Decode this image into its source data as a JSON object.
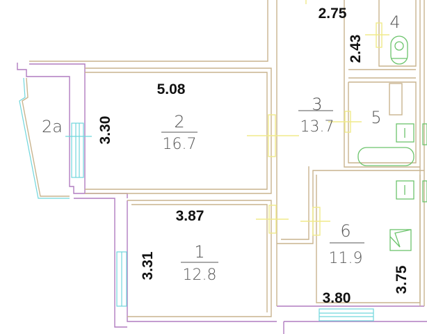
{
  "rooms": [
    {
      "number": "1",
      "area": "12.8"
    },
    {
      "number": "2",
      "area": "16.7"
    },
    {
      "number": "2а"
    },
    {
      "number": "3",
      "area": "13.7"
    },
    {
      "number": "4"
    },
    {
      "number": "5"
    },
    {
      "number": "6",
      "area": "11.9"
    }
  ],
  "dimensions": {
    "room2_width": "5.08",
    "room2_depth": "3.30",
    "room1_width": "3.87",
    "room1_depth": "3.31",
    "room3_width": "2.75",
    "room3_depth": "2.43",
    "room6_width": "3.80",
    "room6_depth": "3.75"
  },
  "colors": {
    "walls": "#c9b48e",
    "outer_walls": "#b07cc0",
    "windows": "#6fd6dc",
    "doors": "#f0ea8a",
    "fixtures": "#6cc46c"
  }
}
